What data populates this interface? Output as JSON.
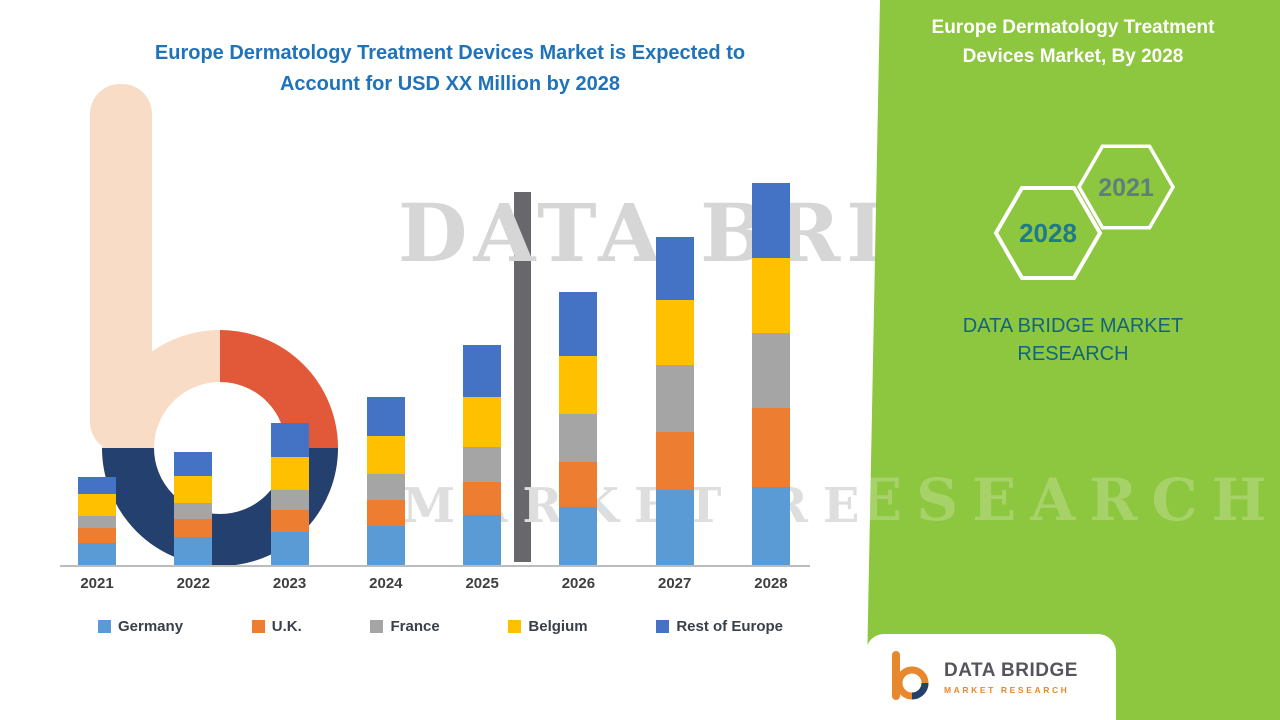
{
  "main": {
    "title_line1": "Europe Dermatology Treatment Devices Market is Expected to",
    "title_line2": "Account for USD XX Million by 2028"
  },
  "watermark": {
    "line1": "DATA BRIDGE",
    "line2": "MARKET RESEARCH",
    "side_fragment": "ESEARCH"
  },
  "chart_data": {
    "type": "bar",
    "stacked": true,
    "title": "Europe Dermatology Treatment Devices Market is Expected to Account for USD XX Million by 2028",
    "xlabel": "",
    "ylabel": "",
    "value_unit": "USD Million (XX)",
    "ylim": [
      0,
      400
    ],
    "grid": false,
    "y_axis_visible": false,
    "legend_position": "bottom",
    "categories": [
      "2021",
      "2022",
      "2023",
      "2024",
      "2025",
      "2026",
      "2027",
      "2028"
    ],
    "series": [
      {
        "name": "Germany",
        "color": "#5b9bd5",
        "values": [
          22,
          28,
          33,
          39,
          50,
          58,
          75,
          78
        ]
      },
      {
        "name": "U.K.",
        "color": "#ed7d31",
        "values": [
          15,
          18,
          22,
          26,
          33,
          45,
          58,
          79
        ]
      },
      {
        "name": "France",
        "color": "#a5a5a5",
        "values": [
          12,
          16,
          20,
          26,
          35,
          48,
          67,
          75
        ]
      },
      {
        "name": "Belgium",
        "color": "#ffc000",
        "values": [
          22,
          27,
          33,
          38,
          50,
          58,
          65,
          75
        ]
      },
      {
        "name": "Rest of Europe",
        "color": "#4472c4",
        "values": [
          17,
          24,
          34,
          39,
          52,
          64,
          63,
          75
        ]
      }
    ],
    "totals_estimated": [
      88,
      113,
      142,
      168,
      220,
      273,
      328,
      382
    ]
  },
  "side_panel": {
    "bg_color": "#8dc63f",
    "title_line1": "Europe Dermatology Treatment",
    "title_line2": "Devices Market, By 2028",
    "hexagon_top": "2021",
    "hexagon_bottom": "2028",
    "brand_line1": "DATA BRIDGE MARKET",
    "brand_line2": "RESEARCH"
  },
  "logo_card": {
    "brand": "DATA BRIDGE",
    "tagline": "MARKET RESEARCH"
  },
  "colors": {
    "title_text": "#2173b9",
    "panel_green": "#8dc63f",
    "hexagon_2021_text": "#5e7f7e",
    "hexagon_2028_text": "#1e7a8c",
    "side_brand_text": "#13657d",
    "logo_orange": "#e8872e",
    "logo_navy": "#24406e"
  }
}
